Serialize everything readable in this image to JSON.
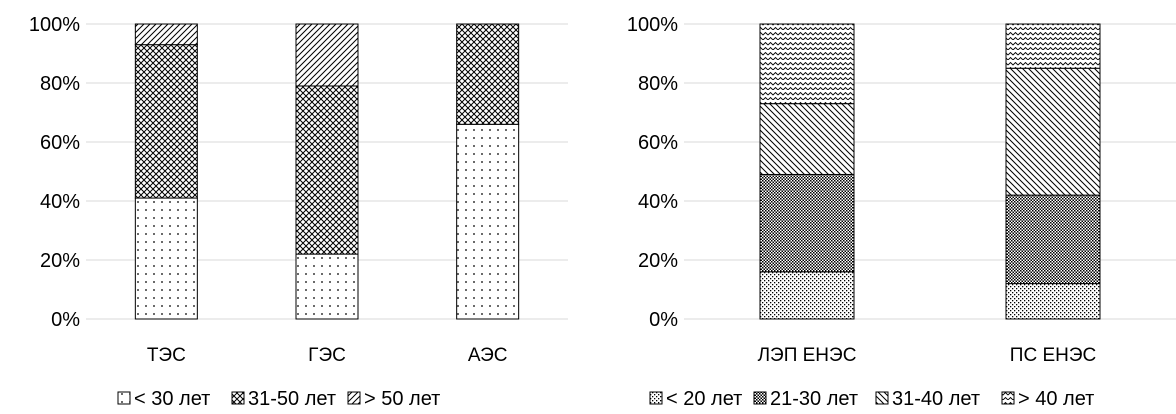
{
  "chart_data": [
    {
      "type": "bar",
      "stacked": true,
      "percent": true,
      "categories": [
        "ТЭС",
        "ГЭС",
        "АЭС"
      ],
      "series": [
        {
          "name": "< 30 лет",
          "values": [
            41,
            22,
            66
          ],
          "pattern": "dots"
        },
        {
          "name": "31-50 лет",
          "values": [
            52,
            57,
            34
          ],
          "pattern": "crosshatch"
        },
        {
          "name": "> 50 лет",
          "values": [
            7,
            21,
            0
          ],
          "pattern": "diagonal"
        }
      ],
      "yticks": [
        "0%",
        "20%",
        "40%",
        "60%",
        "80%",
        "100%"
      ],
      "ylim": [
        0,
        100
      ],
      "grid": true,
      "legend": "bottom"
    },
    {
      "type": "bar",
      "stacked": true,
      "percent": true,
      "categories": [
        "ЛЭП ЕНЭС",
        "ПС ЕНЭС"
      ],
      "series": [
        {
          "name": "< 20 лет",
          "values": [
            16,
            12
          ],
          "pattern": "fine-dots"
        },
        {
          "name": "21-30 лет",
          "values": [
            33,
            30
          ],
          "pattern": "dense-check"
        },
        {
          "name": "31-40 лет",
          "values": [
            24,
            43
          ],
          "pattern": "backslash"
        },
        {
          "name": "> 40 лет",
          "values": [
            27,
            15
          ],
          "pattern": "weave"
        }
      ],
      "yticks": [
        "0%",
        "20%",
        "40%",
        "60%",
        "80%",
        "100%"
      ],
      "ylim": [
        0,
        100
      ],
      "grid": true,
      "legend": "bottom"
    }
  ]
}
